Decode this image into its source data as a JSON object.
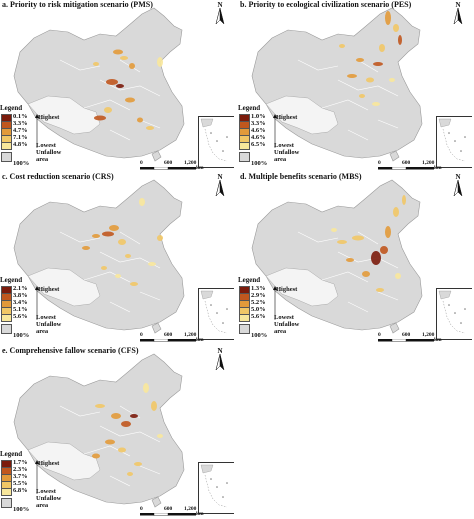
{
  "colors": {
    "ramp": [
      "#7b1b0b",
      "#c0571e",
      "#e29a3a",
      "#f1c766",
      "#f8e79b"
    ],
    "unfallow": "#d9d9d9",
    "boundary": "#9a9a9a"
  },
  "legend": {
    "title": "Legend",
    "highest": "Highest",
    "lowest": "Lowest",
    "unfallow_label": "Unfallow area",
    "unfallow_pct": "100%"
  },
  "north_label": "N",
  "scale": {
    "ticks": [
      "0",
      "600",
      "1,200"
    ],
    "unit": "km"
  },
  "panels": [
    {
      "id": "a",
      "title": "a. Priority to risk mitigation scenario (PMS)",
      "percentages": [
        "0.1%",
        "3.3%",
        "4.7%",
        "7.1%",
        "4.8%"
      ]
    },
    {
      "id": "b",
      "title": "b. Priority to ecological civilization scenario (PES)",
      "percentages": [
        "1.0%",
        "3.3%",
        "4.6%",
        "4.6%",
        "6.5%"
      ]
    },
    {
      "id": "c",
      "title": "c. Cost reduction scenario (CRS)",
      "percentages": [
        "2.1%",
        "3.8%",
        "3.4%",
        "5.1%",
        "5.6%"
      ]
    },
    {
      "id": "d",
      "title": "d. Multiple benefits scenario (MBS)",
      "percentages": [
        "1.3%",
        "2.9%",
        "5.2%",
        "5.0%",
        "5.6%"
      ]
    },
    {
      "id": "e",
      "title": "e. Comprehensive fallow scenario (CFS)",
      "percentages": [
        "1.7%",
        "2.3%",
        "3.7%",
        "5.5%",
        "6.8%"
      ]
    }
  ]
}
